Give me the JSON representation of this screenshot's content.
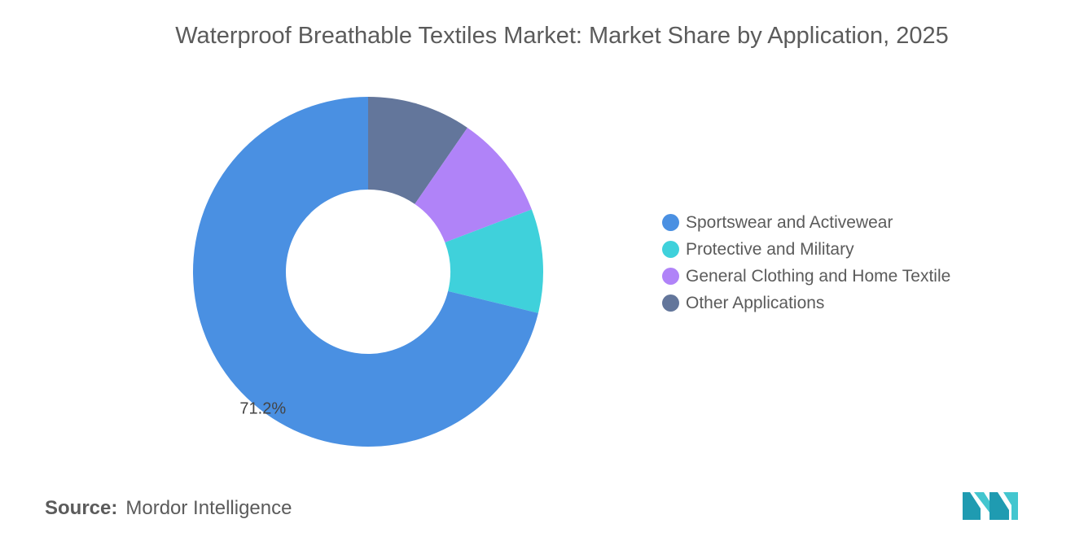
{
  "title": "Waterproof Breathable Textiles Market: Market Share by Application, 2025",
  "source": {
    "label": "Source:",
    "value": "Mordor Intelligence"
  },
  "colors": {
    "background": "#ffffff",
    "text": "#5b5b5b",
    "logo_dark": "#1f9bb1",
    "logo_light": "#43c6cf"
  },
  "chart_data": {
    "type": "pie",
    "donut": true,
    "title": "Waterproof Breathable Textiles Market: Market Share by Application, 2025",
    "legend_position": "right",
    "categories": [
      "Sportswear and Activewear",
      "Protective and Military",
      "General Clothing and Home Textile",
      "Other Applications"
    ],
    "values": [
      71.2,
      9.6,
      9.6,
      9.6
    ],
    "colors": [
      "#4a90e2",
      "#3fd1db",
      "#b083f8",
      "#63769b"
    ],
    "data_labels": [
      "71.2%",
      "",
      "",
      ""
    ]
  },
  "logo_icon": "mordor-intelligence-logo-icon"
}
